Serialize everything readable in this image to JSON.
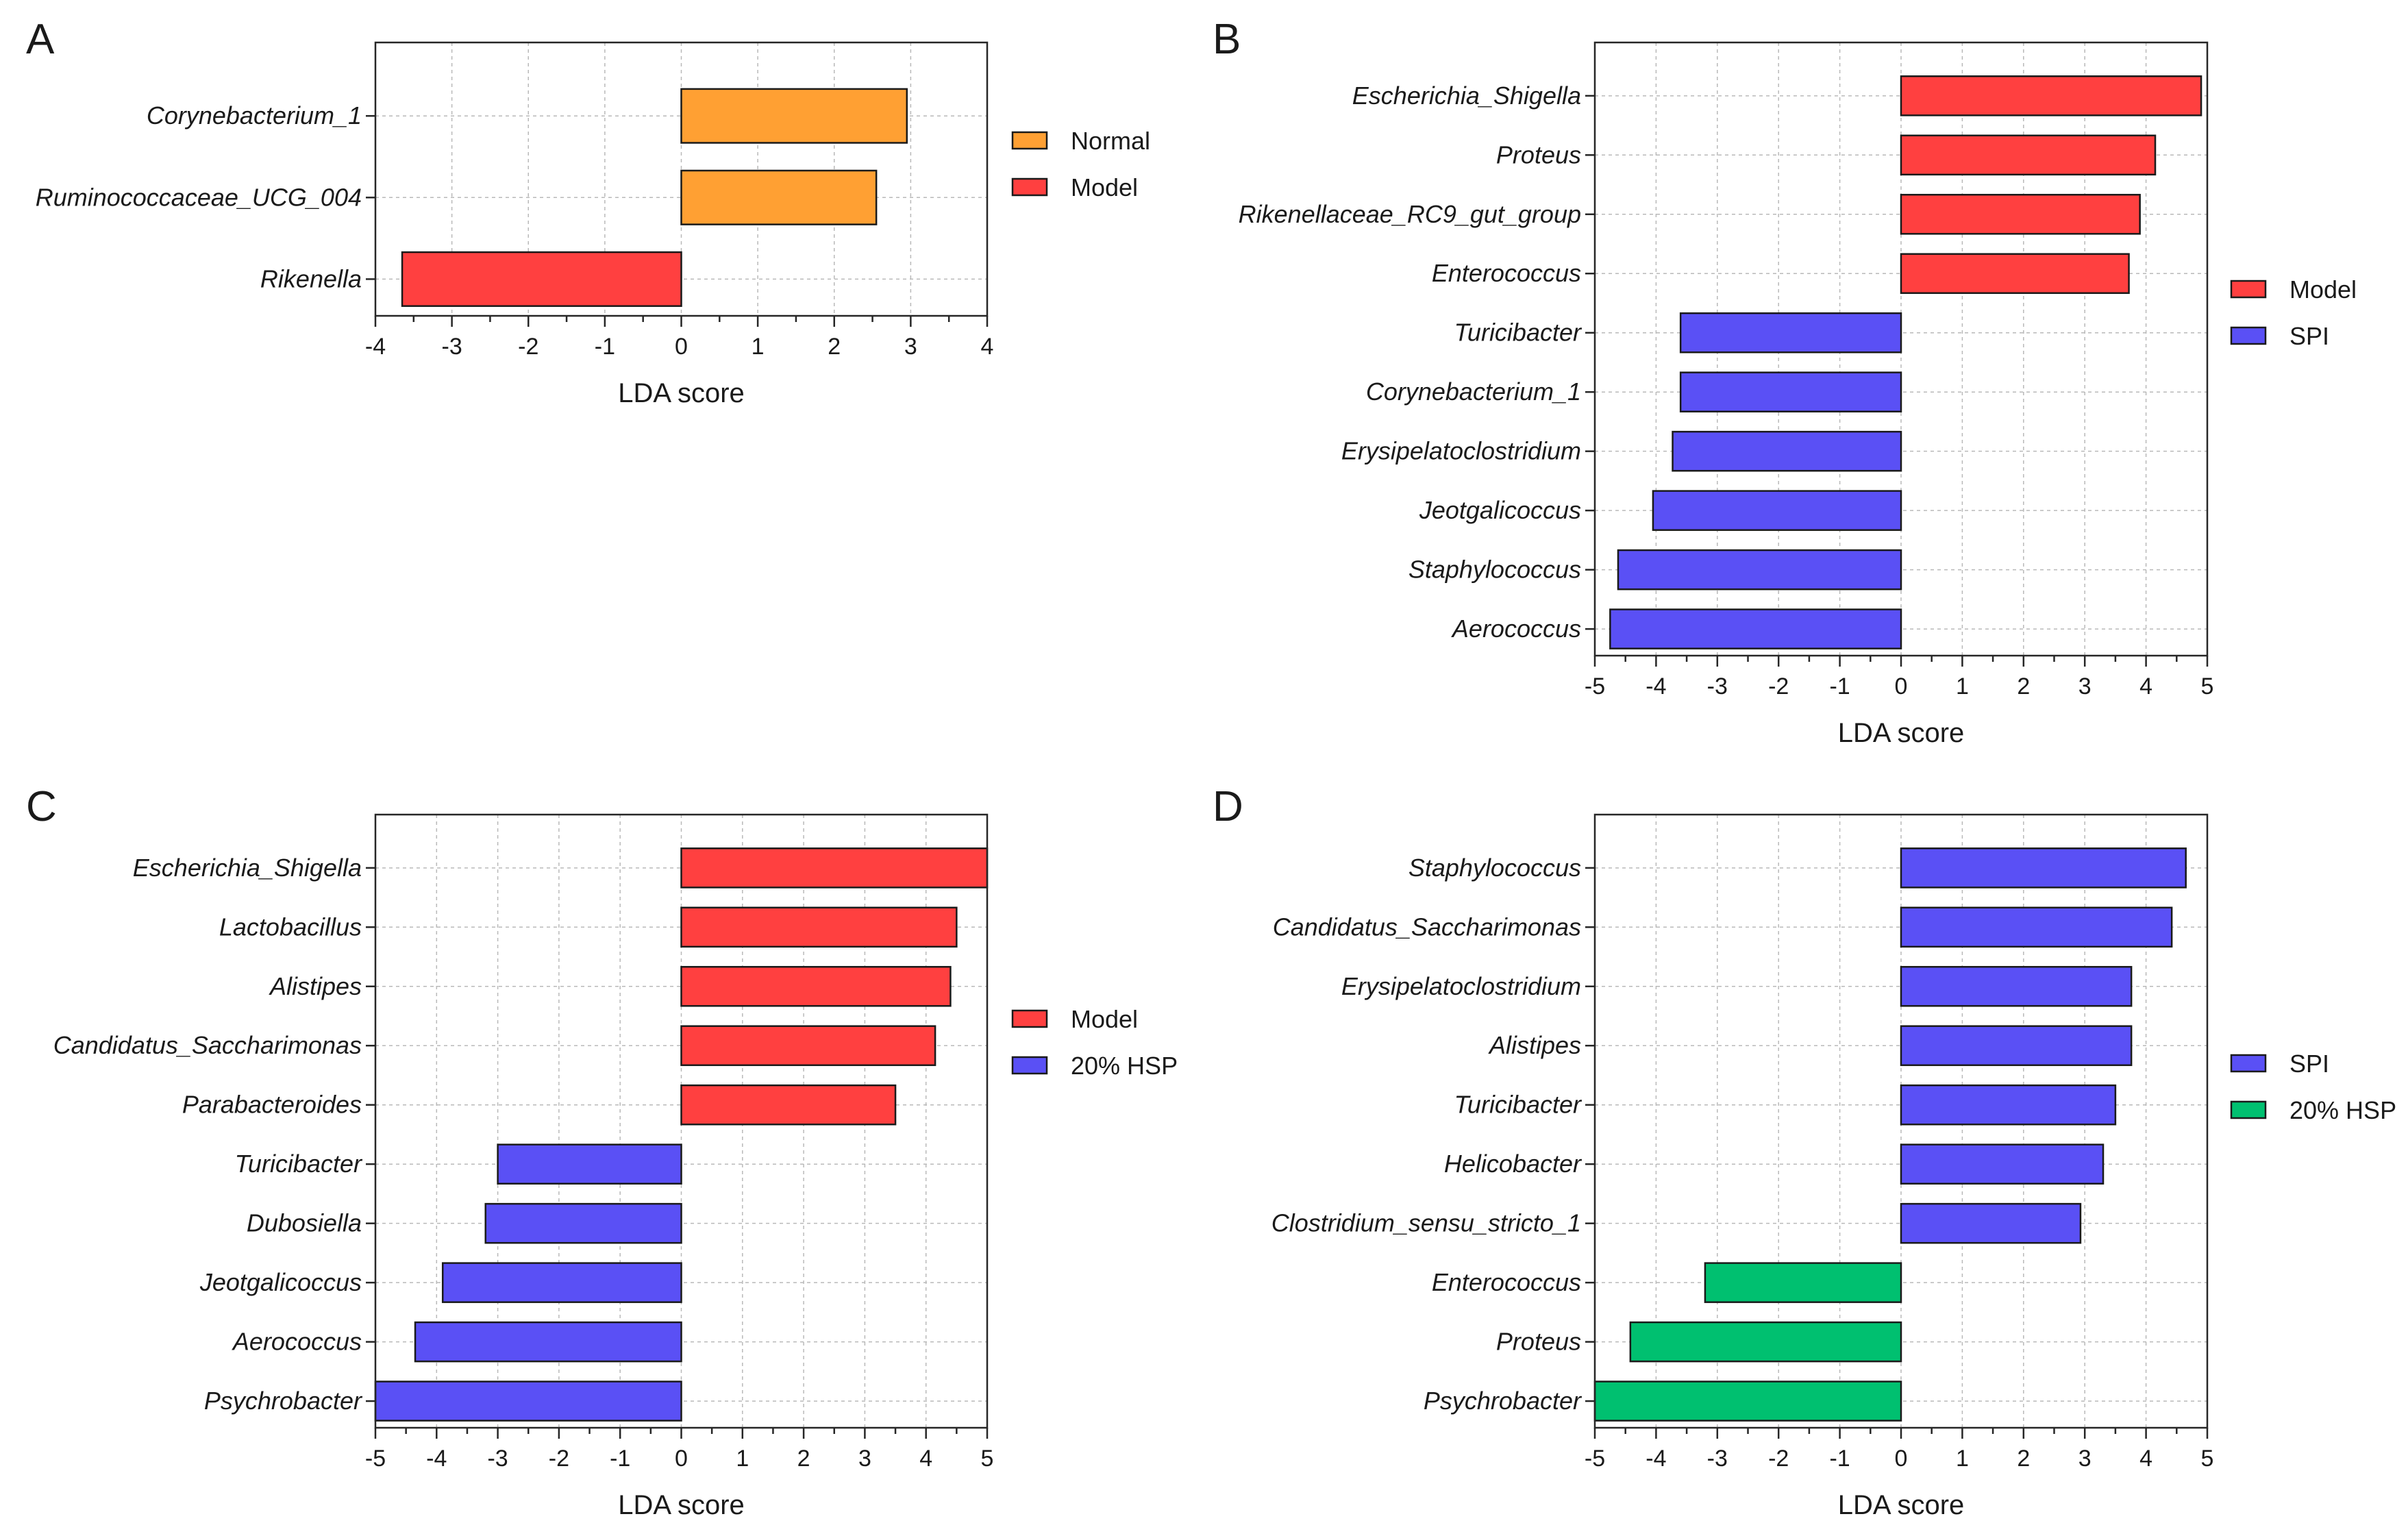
{
  "chart_data": [
    {
      "panel": "A",
      "type": "bar",
      "orientation": "horizontal",
      "categories": [
        "Corynebacterium_1",
        "Ruminococcaceae_UCG_004",
        "Rikenella"
      ],
      "values": [
        2.95,
        2.55,
        -3.65
      ],
      "groups": [
        "Normal",
        "Normal",
        "Model"
      ],
      "legend": [
        {
          "name": "Normal",
          "color": "#ffa033"
        },
        {
          "name": "Model",
          "color": "#ff4040"
        }
      ],
      "xlabel": "LDA score",
      "xlim": [
        -4,
        4
      ],
      "xticks": [
        "-4",
        "-3",
        "-2",
        "-1",
        "0",
        "1",
        "2",
        "3",
        "4"
      ]
    },
    {
      "panel": "B",
      "type": "bar",
      "orientation": "horizontal",
      "categories": [
        "Escherichia_Shigella",
        "Proteus",
        "Rikenellaceae_RC9_gut_group",
        "Enterococcus",
        "Turicibacter",
        "Corynebacterium_1",
        "Erysipelatoclostridium",
        "Jeotgalicoccus",
        "Staphylococcus",
        "Aerococcus"
      ],
      "values": [
        4.9,
        4.15,
        3.9,
        3.72,
        -3.6,
        -3.6,
        -3.73,
        -4.05,
        -4.62,
        -4.75
      ],
      "groups": [
        "Model",
        "Model",
        "Model",
        "Model",
        "SPI",
        "SPI",
        "SPI",
        "SPI",
        "SPI",
        "SPI"
      ],
      "legend": [
        {
          "name": "Model",
          "color": "#ff4040"
        },
        {
          "name": "SPI",
          "color": "#5a50f5"
        }
      ],
      "xlabel": "LDA score",
      "xlim": [
        -5,
        5
      ],
      "xticks": [
        "-5",
        "-4",
        "-3",
        "-2",
        "-1",
        "0",
        "1",
        "2",
        "3",
        "4",
        "5"
      ]
    },
    {
      "panel": "C",
      "type": "bar",
      "orientation": "horizontal",
      "categories": [
        "Escherichia_Shigella",
        "Lactobacillus",
        "Alistipes",
        "Candidatus_Saccharimonas",
        "Parabacteroides",
        "Turicibacter",
        "Dubosiella",
        "Jeotgalicoccus",
        "Aerococcus",
        "Psychrobacter"
      ],
      "values": [
        5.0,
        4.5,
        4.4,
        4.15,
        3.5,
        -3.0,
        -3.2,
        -3.9,
        -4.35,
        -5.0
      ],
      "groups": [
        "Model",
        "Model",
        "Model",
        "Model",
        "Model",
        "20% HSP",
        "20% HSP",
        "20% HSP",
        "20% HSP",
        "20% HSP"
      ],
      "legend": [
        {
          "name": "Model",
          "color": "#ff4040"
        },
        {
          "name": "20% HSP",
          "color": "#5a50f5"
        }
      ],
      "xlabel": "LDA score",
      "xlim": [
        -5,
        5
      ],
      "xticks": [
        "-5",
        "-4",
        "-3",
        "-2",
        "-1",
        "0",
        "1",
        "2",
        "3",
        "4",
        "5"
      ]
    },
    {
      "panel": "D",
      "type": "bar",
      "orientation": "horizontal",
      "categories": [
        "Staphylococcus",
        "Candidatus_Saccharimonas",
        "Erysipelatoclostridium",
        "Alistipes",
        "Turicibacter",
        "Helicobacter",
        "Clostridium_sensu_stricto_1",
        "Enterococcus",
        "Proteus",
        "Psychrobacter"
      ],
      "values": [
        4.65,
        4.42,
        3.76,
        3.76,
        3.5,
        3.3,
        2.93,
        -3.2,
        -4.42,
        -5.0
      ],
      "groups": [
        "SPI",
        "SPI",
        "SPI",
        "SPI",
        "SPI",
        "SPI",
        "SPI",
        "20% HSP",
        "20% HSP",
        "20% HSP"
      ],
      "legend": [
        {
          "name": "SPI",
          "color": "#5a50f5"
        },
        {
          "name": "20% HSP",
          "color": "#00c070"
        }
      ],
      "xlabel": "LDA score",
      "xlim": [
        -5,
        5
      ],
      "xticks": [
        "-5",
        "-4",
        "-3",
        "-2",
        "-1",
        "0",
        "1",
        "2",
        "3",
        "4",
        "5"
      ]
    }
  ]
}
